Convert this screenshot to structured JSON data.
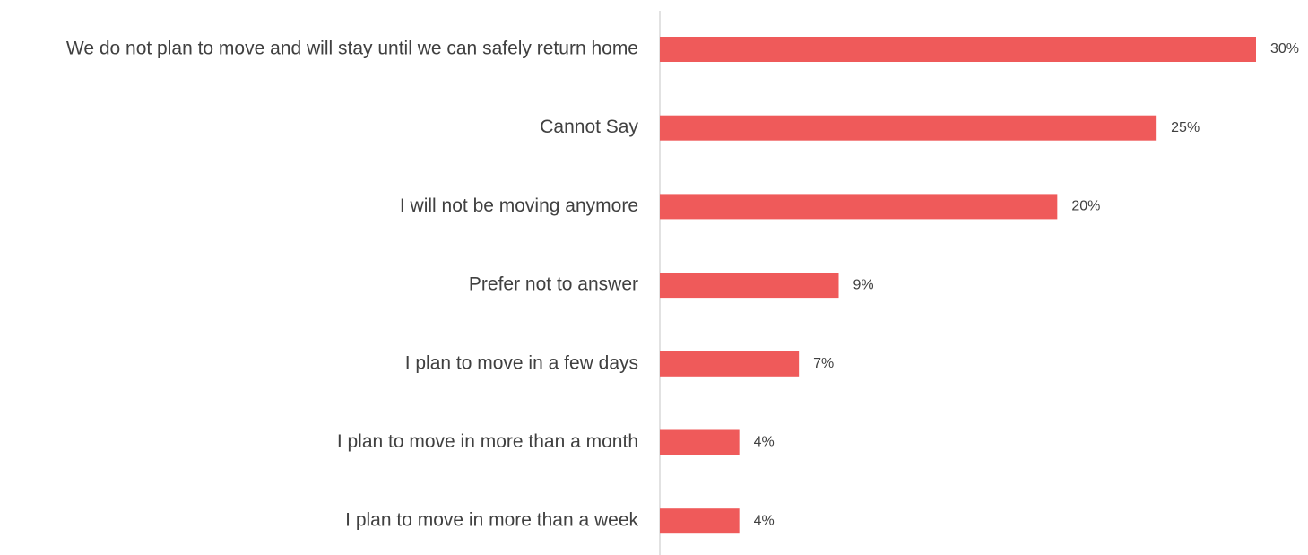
{
  "chart_data": {
    "type": "bar",
    "orientation": "horizontal",
    "categories": [
      "We do not plan to move and will stay until we can safely return home",
      "Cannot Say",
      "I will not be moving anymore",
      "Prefer not to answer",
      "I plan to move in a few days",
      "I plan to move in more than a month",
      "I plan to move in more than a week"
    ],
    "values": [
      30,
      25,
      20,
      9,
      7,
      4,
      4
    ],
    "value_labels": [
      "30%",
      "25%",
      "20%",
      "9%",
      "7%",
      "4%",
      "4%"
    ],
    "color": "#ef5a5a",
    "xlim": [
      0,
      30
    ]
  }
}
